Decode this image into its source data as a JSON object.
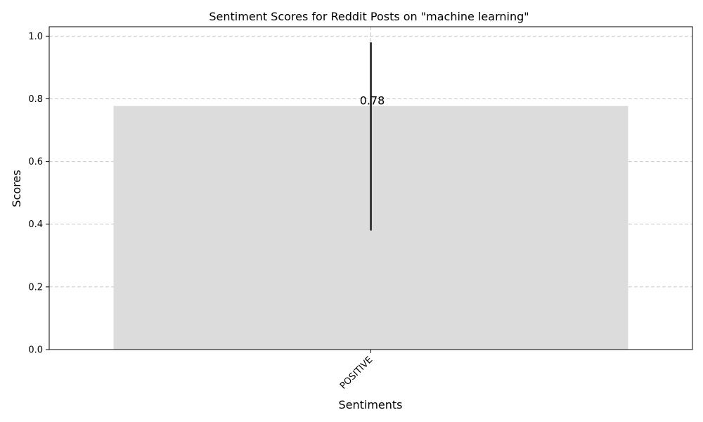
{
  "chart_data": {
    "type": "bar",
    "title": "Sentiment Scores for Reddit Posts on \"machine learning\"",
    "xlabel": "Sentiments",
    "ylabel": "Scores",
    "categories": [
      "POSITIVE"
    ],
    "values": [
      0.777
    ],
    "value_labels": [
      "0.78"
    ],
    "error_bars": [
      {
        "low": 0.38,
        "high": 0.98
      }
    ],
    "ylim": [
      0,
      1.03
    ],
    "yticks": [
      0.0,
      0.2,
      0.4,
      0.6,
      0.8,
      1.0
    ],
    "ytick_labels": [
      "0.0",
      "0.2",
      "0.4",
      "0.6",
      "0.8",
      "1.0"
    ],
    "grid": true,
    "bar_color": "#dcdcdc",
    "errorbar_color": "#3b3b3b",
    "grid_color": "#c8c8c8"
  }
}
